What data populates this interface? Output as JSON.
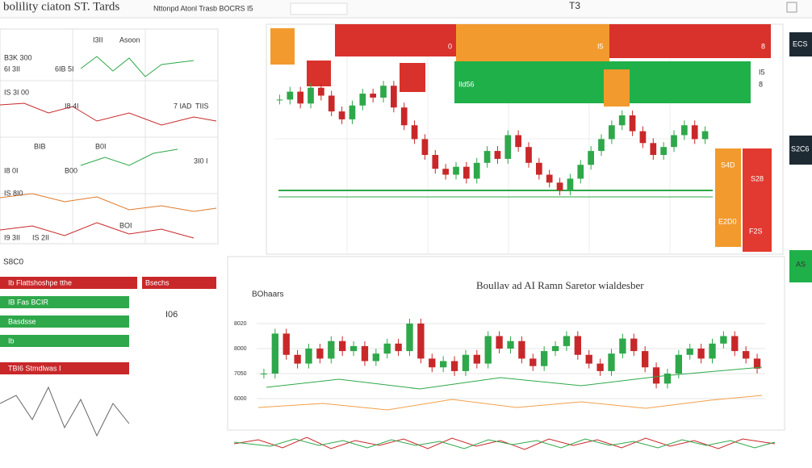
{
  "header": {
    "title": "bolility ciaton ST. Tards",
    "subtitle": "Nttonpd Atonl Trasb BOCRS I5",
    "tab": "T3"
  },
  "left_panel": {
    "labels": [
      "I3II",
      "Asoon",
      "B3K 300",
      "6I 3II",
      "IS 3I 00",
      "6IB 5I",
      "I8 4I",
      "BIB",
      "7 IAD",
      "I8 0I",
      "B00",
      "B0I",
      "IS 8I0",
      "BOI",
      "I9 3II",
      "TIIS",
      "IS 2II",
      "3I0 I"
    ]
  },
  "left_bars": {
    "caption": "S8C0",
    "note": "I06",
    "rows": [
      {
        "label": "Ib Flattshoshpe tthe",
        "extra": "Bsechs",
        "color": "#c8282a"
      },
      {
        "label": "IB Fas BCIR",
        "extra": "",
        "color": "#2ea84a"
      },
      {
        "label": "Basdsse",
        "extra": "",
        "color": "#2ea84a"
      },
      {
        "label": "Ib",
        "extra": "",
        "color": "#2ea84a"
      },
      {
        "label": "TBI6 Stmdlwas I",
        "extra": "",
        "color": "#c8282a"
      }
    ]
  },
  "main_chart": {
    "blocks": [
      "0",
      "I5",
      "8",
      "I5",
      "Ild56",
      "8"
    ],
    "side": [
      "S4D",
      "S28",
      "E2D0",
      "F2S"
    ],
    "up_color": "#2ea84a",
    "down_color": "#c8282a",
    "ylim": [
      0,
      100
    ],
    "close": [
      68,
      72,
      66,
      74,
      70,
      62,
      58,
      65,
      71,
      69,
      75,
      64,
      55,
      48,
      40,
      33,
      30,
      34,
      28,
      36,
      42,
      38,
      50,
      44,
      36,
      30,
      26,
      22,
      28,
      35,
      42,
      48,
      55,
      60,
      52,
      46,
      40,
      44,
      50,
      55,
      48,
      52
    ]
  },
  "bottom_chart": {
    "title": "Boullav ad AI Ramn Saretor wialdesber",
    "legend": "BOhaars",
    "ylim": [
      0,
      100
    ],
    "yticks": [
      {
        "value": 20,
        "label": "6000"
      },
      {
        "value": 40,
        "label": "7050"
      },
      {
        "value": 60,
        "label": "8000"
      },
      {
        "value": 80,
        "label": "8020"
      }
    ],
    "close": [
      40,
      72,
      55,
      48,
      60,
      52,
      66,
      58,
      62,
      50,
      56,
      64,
      58,
      80,
      52,
      45,
      50,
      42,
      55,
      48,
      70,
      60,
      66,
      52,
      46,
      58,
      62,
      70,
      55,
      48,
      42,
      56,
      68,
      58,
      45,
      32,
      40,
      55,
      60,
      52,
      64,
      70,
      58,
      52,
      44
    ]
  },
  "right_panel": {
    "labels": [
      "ECS",
      "S2C6",
      "AS"
    ]
  }
}
